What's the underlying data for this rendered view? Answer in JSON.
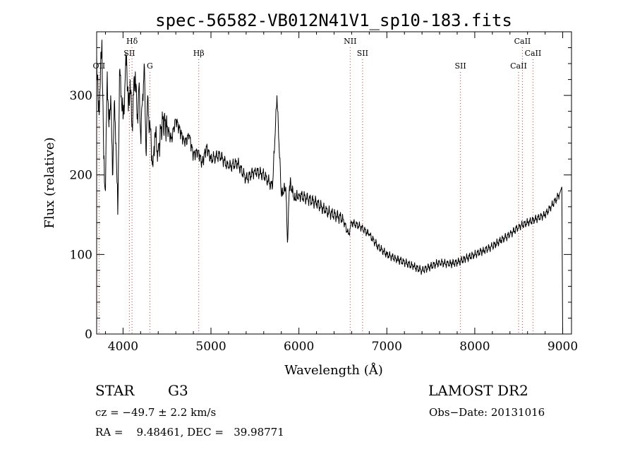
{
  "chart_data": {
    "type": "line",
    "title": "spec-56582-VB012N41V1_sp10-183.fits",
    "xlabel": "Wavelength (Å)",
    "ylabel": "Flux (relative)",
    "xlim": [
      3700,
      9100
    ],
    "ylim": [
      0,
      380
    ],
    "x_ticks": [
      4000,
      5000,
      6000,
      7000,
      8000,
      9000
    ],
    "x_tick_labels": [
      "4000",
      "5000",
      "6000",
      "7000",
      "8000",
      "9000"
    ],
    "y_ticks": [
      0,
      100,
      200,
      300
    ],
    "y_tick_labels": [
      "0",
      "100",
      "200",
      "300"
    ],
    "grid": false,
    "series": [
      {
        "x": [
          3700,
          3720,
          3740,
          3760,
          3780,
          3800,
          3820,
          3840,
          3860,
          3880,
          3900,
          3920,
          3940,
          3960,
          3980,
          4000,
          4020,
          4040,
          4060,
          4080,
          4100,
          4120,
          4140,
          4160,
          4180,
          4200,
          4220,
          4240,
          4260,
          4280,
          4300,
          4320,
          4340,
          4360,
          4380,
          4400,
          4450,
          4500,
          4550,
          4600,
          4650,
          4700,
          4750,
          4800,
          4850,
          4900,
          4950,
          5000,
          5100,
          5200,
          5300,
          5400,
          5500,
          5600,
          5700,
          5750,
          5800,
          5850,
          5870,
          5890,
          5900,
          5950,
          6000,
          6100,
          6200,
          6300,
          6400,
          6500,
          6563,
          6600,
          6700,
          6800,
          6900,
          7000,
          7100,
          7200,
          7300,
          7400,
          7500,
          7600,
          7700,
          7800,
          7900,
          8000,
          8100,
          8200,
          8300,
          8400,
          8500,
          8600,
          8700,
          8800,
          8900,
          8960,
          8990,
          9000
        ],
        "y": [
          350,
          280,
          310,
          370,
          220,
          180,
          330,
          260,
          300,
          200,
          290,
          240,
          150,
          330,
          300,
          270,
          310,
          350,
          280,
          320,
          260,
          300,
          330,
          270,
          310,
          250,
          290,
          340,
          230,
          300,
          260,
          240,
          210,
          250,
          240,
          230,
          270,
          260,
          245,
          270,
          255,
          240,
          250,
          225,
          230,
          215,
          235,
          220,
          225,
          210,
          215,
          195,
          205,
          200,
          185,
          300,
          175,
          185,
          115,
          180,
          190,
          170,
          175,
          170,
          165,
          155,
          150,
          145,
          125,
          140,
          135,
          125,
          110,
          100,
          95,
          90,
          85,
          80,
          85,
          90,
          88,
          90,
          95,
          100,
          105,
          110,
          118,
          125,
          135,
          140,
          145,
          150,
          165,
          175,
          185,
          0
        ]
      }
    ],
    "annotations": [
      {
        "label": "OII",
        "x": 3727,
        "row": 3
      },
      {
        "label": "Hδ",
        "x": 4102,
        "row": 1
      },
      {
        "label": "SII",
        "x": 4072,
        "row": 2
      },
      {
        "label": "G",
        "x": 4305,
        "row": 3
      },
      {
        "label": "Hβ",
        "x": 4861,
        "row": 2
      },
      {
        "label": "NII",
        "x": 6583,
        "row": 1
      },
      {
        "label": "SII",
        "x": 6724,
        "row": 2
      },
      {
        "label": "SII",
        "x": 7837,
        "row": 3
      },
      {
        "label": "CaII",
        "x": 8542,
        "row": 1
      },
      {
        "label": "CaII",
        "x": 8662,
        "row": 2
      },
      {
        "label": "CaII",
        "x": 8498,
        "row": 3
      }
    ]
  },
  "info": {
    "object_class": "STAR",
    "subclass": "G3",
    "survey": "LAMOST DR2",
    "redshift": "cz = −49.7 ± 2.2 km/s",
    "obs_date": "Obs−Date: 20131016",
    "coords": "RA =    9.48461, DEC =   39.98771"
  }
}
